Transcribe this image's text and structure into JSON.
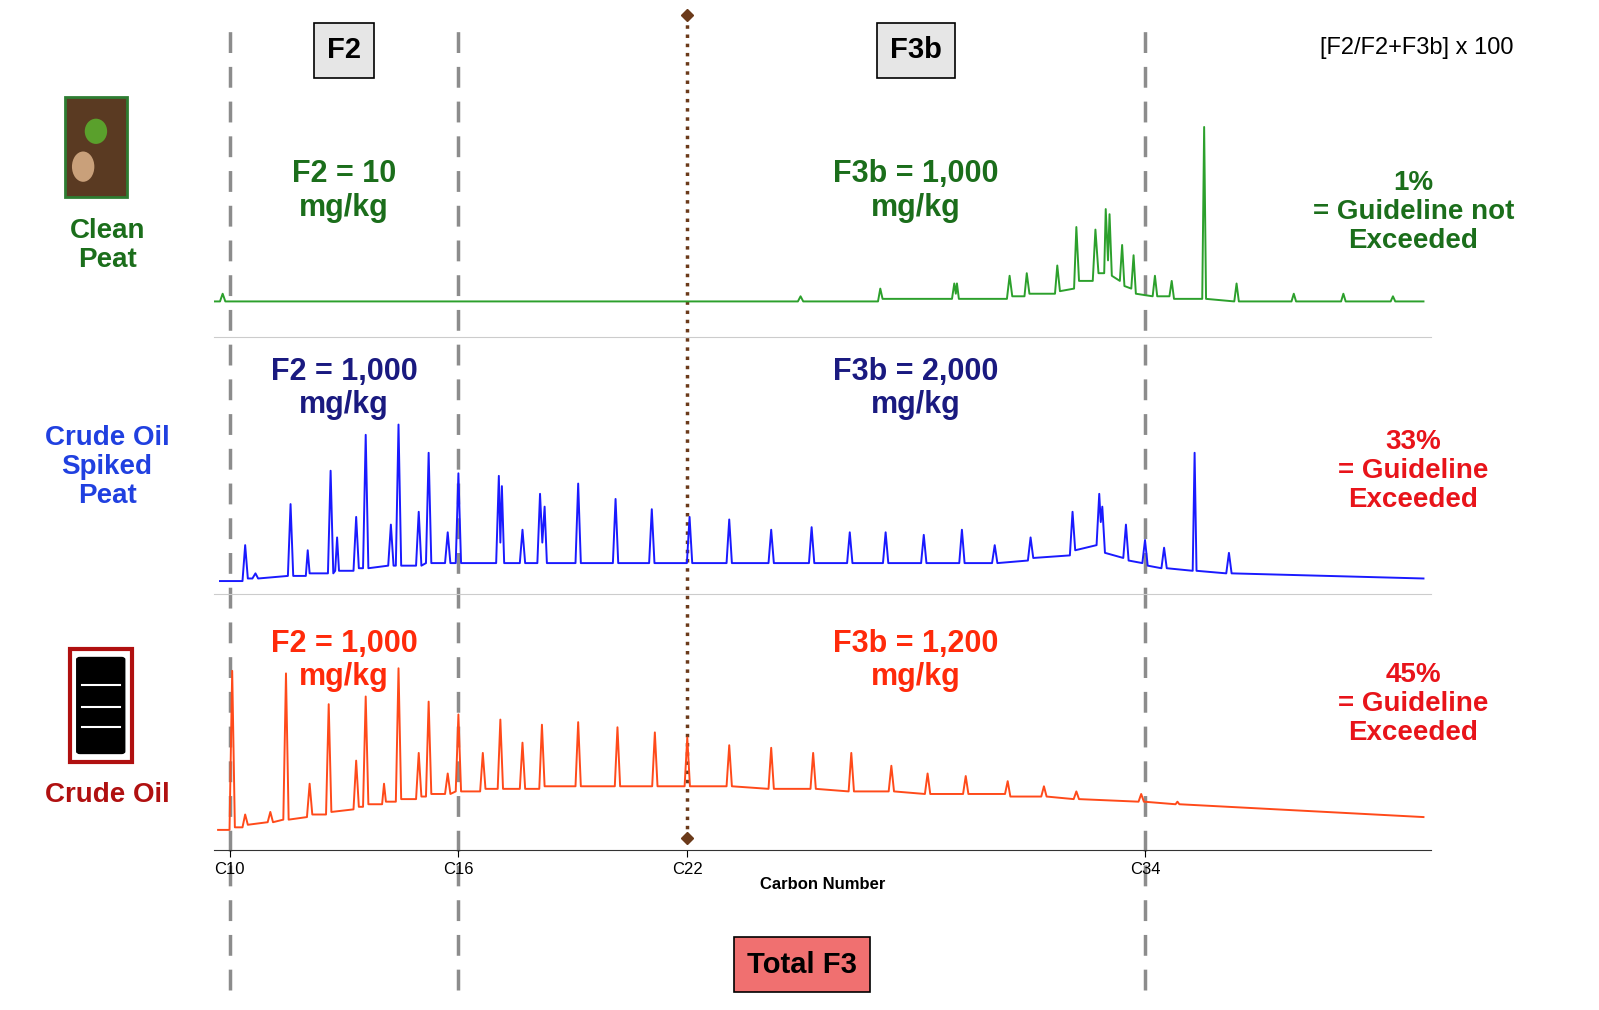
{
  "formula": "[F2/F2+F3b] x 100",
  "fractions": [
    {
      "label": "F2",
      "from": 10,
      "to": 16
    },
    {
      "label": "F3b",
      "from": 22,
      "to": 34
    },
    {
      "label": "Total F3",
      "from": 16,
      "to": 34
    }
  ],
  "dividers": [
    {
      "x": 10,
      "line_style": "dashed",
      "color": "#8c8c8c"
    },
    {
      "x": 16,
      "line_style": "dashed",
      "color": "#8c8c8c"
    },
    {
      "x": 22,
      "line_style": "dotted",
      "color": "#6b3a1a",
      "marker": "diamond"
    },
    {
      "x": 34,
      "line_style": "dashed",
      "color": "#8c8c8c"
    }
  ],
  "chart_data": [
    {
      "type": "line",
      "color": "#2ca02c",
      "line_style": "solid",
      "xlim": [
        9.6,
        41.5
      ],
      "ylim": [
        0,
        100
      ],
      "tick_labels": false,
      "x": [
        9.6,
        9.75,
        9.82,
        9.89,
        24.9,
        24.97,
        25.04,
        27.0,
        27.06,
        27.12,
        28.94,
        29.0,
        29.04,
        29.07,
        29.12,
        30.38,
        30.45,
        30.52,
        30.84,
        30.9,
        30.97,
        31.64,
        31.7,
        31.77,
        32.14,
        32.2,
        32.27,
        32.63,
        32.7,
        32.78,
        32.93,
        32.97,
        33.03,
        33.07,
        33.13,
        33.34,
        33.4,
        33.46,
        33.64,
        33.7,
        33.76,
        34.2,
        34.26,
        34.32,
        34.64,
        34.7,
        34.76,
        35.5,
        35.55,
        35.6,
        36.34,
        36.4,
        36.46,
        37.84,
        37.9,
        37.96,
        39.14,
        39.2,
        39.26,
        40.44,
        40.5,
        40.56,
        41.3
      ],
      "values": [
        14,
        14,
        17,
        14,
        14,
        16,
        14,
        14,
        19,
        15,
        15,
        21,
        17,
        21,
        15,
        15,
        24,
        16,
        16,
        25,
        17,
        17,
        28,
        18,
        19,
        43,
        22,
        22,
        42,
        25,
        25,
        50,
        30,
        48,
        24,
        22,
        36,
        20,
        19,
        32,
        17,
        16,
        24,
        16,
        16,
        22,
        15,
        15,
        82,
        15,
        14,
        21,
        14,
        14,
        17,
        14,
        14,
        17,
        14,
        14,
        16,
        14,
        14
      ],
      "annotations": [
        {
          "text": "Clean\nPeat",
          "color": "#1b6e1b"
        },
        {
          "text": "F2 = 10\nmg/kg",
          "color": "#1b6e1b"
        },
        {
          "text": "F3b = 1,000\nmg/kg",
          "color": "#1b6e1b"
        },
        {
          "text": "1%\n= Guideline not\nExceeded",
          "color": "#1b6e1b"
        }
      ]
    },
    {
      "type": "line",
      "color": "#1a1aff",
      "line_style": "solid",
      "xlim": [
        9.6,
        41.5
      ],
      "ylim": [
        0,
        100
      ],
      "tick_labels": false,
      "x": [
        9.75,
        10.34,
        10.41,
        10.48,
        10.6,
        10.68,
        10.75,
        11.53,
        11.6,
        11.67,
        12.0,
        12.05,
        12.1,
        12.58,
        12.65,
        12.72,
        12.77,
        12.82,
        12.87,
        13.25,
        13.32,
        13.39,
        13.5,
        13.57,
        13.64,
        14.16,
        14.23,
        14.3,
        14.36,
        14.43,
        14.5,
        14.89,
        14.96,
        15.03,
        15.15,
        15.22,
        15.29,
        15.65,
        15.72,
        15.79,
        15.93,
        16.0,
        16.07,
        16.99,
        17.06,
        17.1,
        17.14,
        17.2,
        17.61,
        17.68,
        17.75,
        18.07,
        18.14,
        18.2,
        18.26,
        18.32,
        19.07,
        19.14,
        19.21,
        20.05,
        20.12,
        20.19,
        21.0,
        21.07,
        21.14,
        21.99,
        22.06,
        22.13,
        23.03,
        23.1,
        23.17,
        24.13,
        24.2,
        24.27,
        25.19,
        25.26,
        25.33,
        26.19,
        26.26,
        26.33,
        27.13,
        27.2,
        27.27,
        28.13,
        28.2,
        28.27,
        29.13,
        29.2,
        29.27,
        29.99,
        30.06,
        30.13,
        30.93,
        31.0,
        31.07,
        32.03,
        32.1,
        32.17,
        32.73,
        32.8,
        32.84,
        32.88,
        32.95,
        33.43,
        33.5,
        33.57,
        33.93,
        34.0,
        34.07,
        34.43,
        34.5,
        34.57,
        35.25,
        35.3,
        35.35,
        36.13,
        36.2,
        36.27,
        41.3
      ],
      "values": [
        5,
        5,
        19,
        6,
        6,
        8,
        6,
        7,
        35,
        7,
        7,
        17,
        8,
        8,
        48,
        8,
        9,
        22,
        9,
        9,
        30,
        10,
        10,
        62,
        10,
        11,
        27,
        11,
        11,
        66,
        11,
        11,
        32,
        11,
        12,
        55,
        12,
        12,
        24,
        12,
        12,
        47,
        12,
        12,
        46,
        20,
        42,
        12,
        12,
        25,
        12,
        12,
        39,
        20,
        34,
        12,
        12,
        43,
        12,
        12,
        37,
        12,
        12,
        33,
        12,
        12,
        30,
        12,
        12,
        29,
        12,
        12,
        25,
        12,
        12,
        26,
        12,
        12,
        24,
        12,
        12,
        24,
        12,
        12,
        23,
        12,
        12,
        25,
        12,
        12,
        19,
        12,
        13,
        22,
        14,
        15,
        32,
        17,
        19,
        39,
        28,
        34,
        16,
        14,
        27,
        13,
        12,
        21,
        11,
        10,
        18,
        10,
        9,
        55,
        9,
        8,
        16,
        8,
        6
      ],
      "annotations": [
        {
          "text": "Crude Oil\nSpiked\nPeat",
          "color": "#2040e0"
        },
        {
          "text": "F2 = 1,000\nmg/kg",
          "color": "#1a1a80"
        },
        {
          "text": "F3b = 2,000\nmg/kg",
          "color": "#1a1a80"
        },
        {
          "text": "33%\n= Guideline\nExceeded",
          "color": "#e8141a"
        }
      ]
    },
    {
      "type": "line",
      "color": "#ff4a1a",
      "line_style": "solid",
      "xlim": [
        9.6,
        41.5
      ],
      "ylim": [
        0,
        100
      ],
      "tick_labels": "x",
      "x_label": "Carbon Number",
      "xticks": [
        {
          "value": 10,
          "label": "C10"
        },
        {
          "value": 16,
          "label": "C16"
        },
        {
          "value": 22,
          "label": "C22"
        },
        {
          "value": 34,
          "label": "C34"
        }
      ],
      "x": [
        9.7,
        10.0,
        10.07,
        10.14,
        10.34,
        10.41,
        10.48,
        11.0,
        11.07,
        11.14,
        11.41,
        11.48,
        11.55,
        12.03,
        12.1,
        12.17,
        12.53,
        12.6,
        12.67,
        13.25,
        13.32,
        13.39,
        13.5,
        13.57,
        13.64,
        14.0,
        14.05,
        14.1,
        14.36,
        14.43,
        14.5,
        14.89,
        14.96,
        15.03,
        15.15,
        15.22,
        15.29,
        15.65,
        15.72,
        15.79,
        15.93,
        16.0,
        16.07,
        16.57,
        16.64,
        16.71,
        17.03,
        17.1,
        17.17,
        17.61,
        17.68,
        17.75,
        18.12,
        18.19,
        18.26,
        19.07,
        19.14,
        19.21,
        20.1,
        20.17,
        20.24,
        21.08,
        21.15,
        21.22,
        21.93,
        22.0,
        22.07,
        23.03,
        23.1,
        23.17,
        24.13,
        24.2,
        24.27,
        25.23,
        25.3,
        25.37,
        26.23,
        26.3,
        26.37,
        27.28,
        27.35,
        27.42,
        28.23,
        28.3,
        28.37,
        29.23,
        29.3,
        29.37,
        30.33,
        30.4,
        30.47,
        31.28,
        31.35,
        31.42,
        32.13,
        32.2,
        32.27,
        33.83,
        33.9,
        33.97,
        34.8,
        34.85,
        34.9,
        41.3
      ],
      "values": [
        8,
        8,
        70,
        9,
        9,
        14,
        10,
        11,
        15,
        11,
        12,
        69,
        12,
        13,
        26,
        14,
        14,
        57,
        15,
        16,
        35,
        17,
        17,
        60,
        18,
        18,
        26,
        19,
        19,
        71,
        20,
        20,
        38,
        21,
        21,
        58,
        22,
        22,
        30,
        22,
        23,
        53,
        23,
        23,
        38,
        24,
        24,
        51,
        24,
        24,
        42,
        24,
        24,
        49,
        25,
        25,
        50,
        25,
        25,
        48,
        25,
        25,
        46,
        25,
        25,
        44,
        25,
        25,
        41,
        25,
        24,
        40,
        24,
        24,
        38,
        24,
        23,
        38,
        23,
        23,
        33,
        23,
        22,
        30,
        22,
        22,
        29,
        22,
        22,
        27,
        21,
        21,
        25,
        21,
        20,
        23,
        20,
        19,
        22,
        19,
        18,
        19,
        18,
        13
      ],
      "annotations": [
        {
          "text": "Crude Oil",
          "color": "#b01010"
        },
        {
          "text": "F2 = 1,000\nmg/kg",
          "color": "#ff2a0a"
        },
        {
          "text": "F3b = 1,200\nmg/kg",
          "color": "#ff2a0a"
        },
        {
          "text": "45%\n= Guideline\nExceeded",
          "color": "#e8141a"
        }
      ]
    }
  ]
}
